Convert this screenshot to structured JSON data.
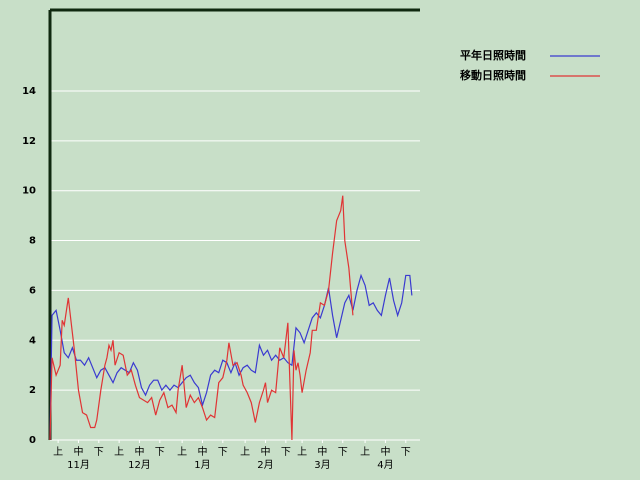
{
  "chart_data": {
    "type": "line",
    "ylim": [
      0,
      17.2
    ],
    "yticks": [
      0,
      2,
      4,
      6,
      8,
      10,
      12,
      14
    ],
    "grid": true,
    "xlim": [
      0,
      182
    ],
    "xticks": [
      {
        "value": 4,
        "label": "上"
      },
      {
        "value": 14,
        "label": "中"
      },
      {
        "value": 24,
        "label": "下"
      },
      {
        "value": 34,
        "label": "上"
      },
      {
        "value": 44,
        "label": "中"
      },
      {
        "value": 54,
        "label": "下"
      },
      {
        "value": 65,
        "label": "上"
      },
      {
        "value": 75,
        "label": "中"
      },
      {
        "value": 85,
        "label": "下"
      },
      {
        "value": 96,
        "label": "上"
      },
      {
        "value": 106,
        "label": "中"
      },
      {
        "value": 116,
        "label": "下"
      },
      {
        "value": 124,
        "label": "上"
      },
      {
        "value": 134,
        "label": "中"
      },
      {
        "value": 144,
        "label": "下"
      },
      {
        "value": 155,
        "label": "上"
      },
      {
        "value": 165,
        "label": "中"
      },
      {
        "value": 175,
        "label": "下"
      }
    ],
    "month_labels": [
      {
        "value": 14,
        "label": "11月"
      },
      {
        "value": 44,
        "label": "12月"
      },
      {
        "value": 75,
        "label": "1月"
      },
      {
        "value": 106,
        "label": "2月"
      },
      {
        "value": 134,
        "label": "3月"
      },
      {
        "value": 165,
        "label": "4月"
      }
    ],
    "legend": "top-right",
    "series": [
      {
        "name": "平年日照時間",
        "color": "#3a3ad0",
        "x": [
          0,
          1,
          3,
          5,
          7,
          9,
          11,
          13,
          15,
          17,
          19,
          21,
          23,
          25,
          27,
          29,
          31,
          33,
          35,
          37,
          39,
          41,
          43,
          45,
          47,
          49,
          51,
          53,
          55,
          57,
          59,
          61,
          63,
          65,
          67,
          69,
          71,
          73,
          75,
          77,
          79,
          81,
          83,
          85,
          87,
          89,
          91,
          93,
          95,
          97,
          99,
          101,
          103,
          105,
          107,
          109,
          111,
          113,
          115,
          117,
          119,
          121,
          123,
          125,
          127,
          129,
          131,
          133,
          135,
          137,
          139,
          141,
          143,
          145,
          147,
          149,
          151,
          153,
          155,
          157,
          159,
          161,
          163,
          165,
          167,
          169,
          171,
          173,
          175,
          177,
          178
        ],
        "values": [
          0,
          5.0,
          5.2,
          4.4,
          3.5,
          3.3,
          3.7,
          3.2,
          3.2,
          3.0,
          3.3,
          2.9,
          2.5,
          2.8,
          2.9,
          2.6,
          2.3,
          2.7,
          2.9,
          2.8,
          2.7,
          3.1,
          2.8,
          2.1,
          1.8,
          2.2,
          2.4,
          2.4,
          2.0,
          2.2,
          2.0,
          2.2,
          2.1,
          2.3,
          2.5,
          2.6,
          2.3,
          2.1,
          1.4,
          1.9,
          2.6,
          2.8,
          2.7,
          3.2,
          3.1,
          2.7,
          3.1,
          2.6,
          2.9,
          3.0,
          2.8,
          2.7,
          3.8,
          3.4,
          3.6,
          3.2,
          3.4,
          3.2,
          3.3,
          3.1,
          3.0,
          4.5,
          4.3,
          3.9,
          4.4,
          4.9,
          5.1,
          4.9,
          5.4,
          6.1,
          5.0,
          4.1,
          4.8,
          5.5,
          5.8,
          5.2,
          6.0,
          6.6,
          6.2,
          5.4,
          5.5,
          5.2,
          5.0,
          5.8,
          6.5,
          5.6,
          5.0,
          5.5,
          6.6,
          6.6,
          5.8
        ]
      },
      {
        "name": "移動日照時間",
        "color": "#e03434",
        "x": [
          0,
          1,
          3,
          5,
          6,
          7,
          9,
          11,
          12,
          14,
          16,
          18,
          20,
          22,
          23,
          25,
          27,
          28,
          29,
          30,
          31,
          32,
          34,
          36,
          38,
          40,
          42,
          44,
          46,
          48,
          50,
          52,
          54,
          56,
          58,
          60,
          62,
          63,
          65,
          67,
          69,
          71,
          73,
          75,
          77,
          79,
          81,
          83,
          85,
          87,
          88,
          90,
          92,
          94,
          95,
          97,
          99,
          101,
          103,
          105,
          106,
          107,
          109,
          111,
          113,
          115,
          117,
          119,
          120,
          121,
          122,
          123,
          124,
          126,
          128,
          129,
          131,
          133,
          135,
          137,
          139,
          141,
          143,
          144,
          145,
          147,
          149
        ],
        "values": [
          0,
          3.3,
          2.6,
          3.0,
          4.8,
          4.6,
          5.7,
          4.3,
          3.6,
          2.0,
          1.1,
          1.0,
          0.5,
          0.5,
          0.8,
          2.0,
          3.0,
          3.3,
          3.8,
          3.6,
          4.0,
          3.0,
          3.5,
          3.4,
          2.6,
          2.8,
          2.2,
          1.7,
          1.6,
          1.5,
          1.7,
          1.0,
          1.6,
          1.9,
          1.3,
          1.4,
          1.1,
          2.0,
          3.0,
          1.3,
          1.8,
          1.5,
          1.7,
          1.3,
          0.8,
          1.0,
          0.9,
          2.3,
          2.5,
          3.2,
          3.9,
          3.0,
          3.1,
          2.6,
          2.2,
          1.9,
          1.5,
          0.7,
          1.5,
          2.0,
          2.3,
          1.5,
          2.0,
          1.9,
          3.7,
          3.3,
          4.7,
          0.0,
          3.6,
          2.8,
          3.1,
          2.6,
          1.9,
          2.8,
          3.5,
          4.4,
          4.4,
          5.5,
          5.4,
          6.0,
          7.5,
          8.8,
          9.2,
          9.8,
          8.0,
          6.9,
          5.0
        ]
      }
    ]
  }
}
